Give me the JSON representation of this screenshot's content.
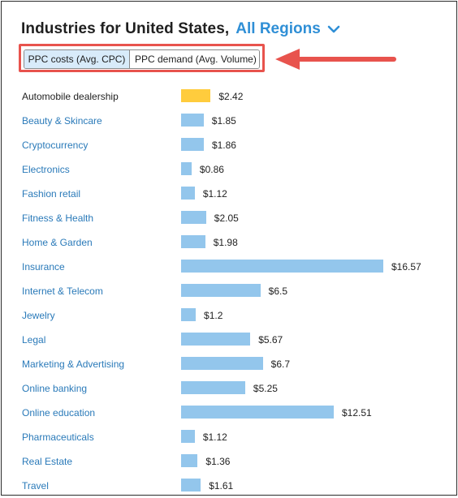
{
  "header": {
    "title": "Industries for United States,",
    "region": "All Regions"
  },
  "toggle": {
    "active_label": "PPC costs (Avg. CPC)",
    "inactive_label": "PPC demand (Avg. Volume)"
  },
  "colors": {
    "accent": "#2f8fd6",
    "bar": "#93c6ec",
    "highlight_bar": "#ffcc3d",
    "callout": "#e8534d"
  },
  "chart_data": {
    "type": "bar",
    "orientation": "horizontal",
    "categories": [
      "Automobile dealership",
      "Beauty & Skincare",
      "Cryptocurrency",
      "Electronics",
      "Fashion retail",
      "Fitness & Health",
      "Home & Garden",
      "Insurance",
      "Internet & Telecom",
      "Jewelry",
      "Legal",
      "Marketing & Advertising",
      "Online banking",
      "Online education",
      "Pharmaceuticals",
      "Real Estate",
      "Travel"
    ],
    "values": [
      2.42,
      1.85,
      1.86,
      0.86,
      1.12,
      2.05,
      1.98,
      16.57,
      6.5,
      1.2,
      5.67,
      6.7,
      5.25,
      12.51,
      1.12,
      1.36,
      1.61
    ],
    "value_labels": [
      "$2.42",
      "$1.85",
      "$1.86",
      "$0.86",
      "$1.12",
      "$2.05",
      "$1.98",
      "$16.57",
      "$6.5",
      "$1.2",
      "$5.67",
      "$6.7",
      "$5.25",
      "$12.51",
      "$1.12",
      "$1.36",
      "$1.61"
    ],
    "highlighted_index": 0,
    "xlim": [
      0,
      16.57
    ]
  }
}
